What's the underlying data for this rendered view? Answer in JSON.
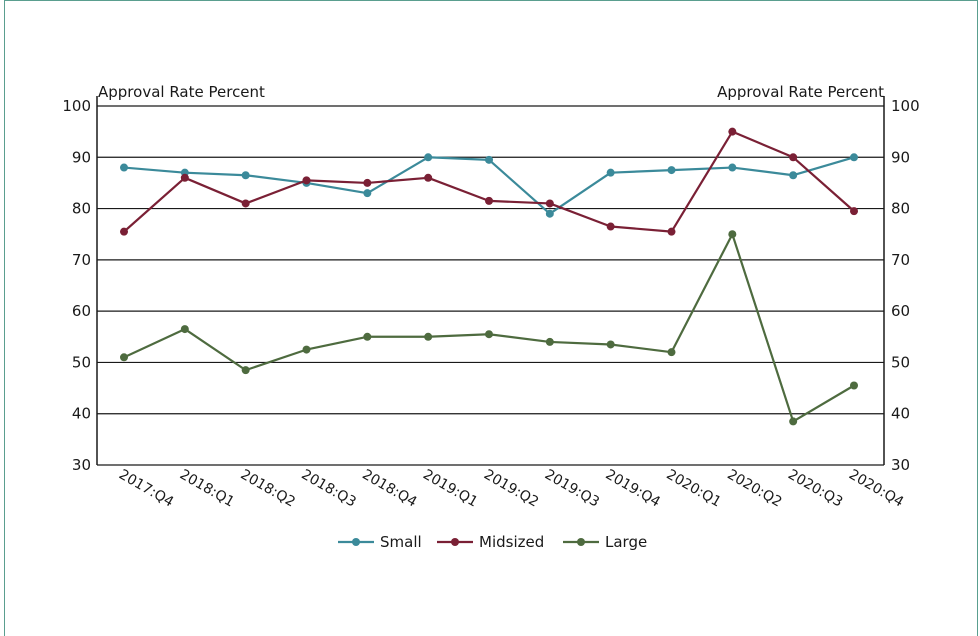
{
  "chart_data": {
    "type": "line",
    "ylabel_left": "Approval Rate Percent",
    "ylabel_right": "Approval Rate Percent",
    "ylim": [
      30,
      100
    ],
    "yticks": [
      30,
      40,
      50,
      60,
      70,
      80,
      90,
      100
    ],
    "grid": true,
    "legend_position": "bottom",
    "categories": [
      "2017:Q4",
      "2018:Q1",
      "2018:Q2",
      "2018:Q3",
      "2018:Q4",
      "2019:Q1",
      "2019:Q2",
      "2019:Q3",
      "2019:Q4",
      "2020:Q1",
      "2020:Q2",
      "2020:Q3",
      "2020:Q4"
    ],
    "series": [
      {
        "name": "Small",
        "color": "#3b8a9a",
        "values": [
          88,
          87,
          86.5,
          85,
          83,
          90,
          89.5,
          79,
          87,
          87.5,
          88,
          86.5,
          90
        ]
      },
      {
        "name": "Midsized",
        "color": "#7a2035",
        "values": [
          75.5,
          86,
          81,
          85.5,
          85,
          86,
          81.5,
          81,
          76.5,
          75.5,
          95,
          90,
          79.5
        ]
      },
      {
        "name": "Large",
        "color": "#4e6b3f",
        "values": [
          51,
          56.5,
          48.5,
          52.5,
          55,
          55,
          55.5,
          54,
          53.5,
          52,
          75,
          38.5,
          45.5
        ]
      }
    ]
  }
}
